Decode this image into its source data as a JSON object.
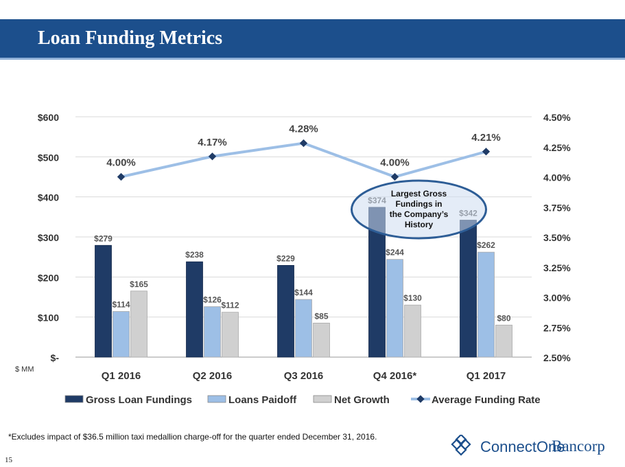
{
  "slide": {
    "title": "Loan Funding Metrics",
    "footnote": "*Excludes impact of $36.5 million taxi medallion charge-off for the quarter ended December 31, 2016.",
    "page_number": "15",
    "logo": {
      "name": "ConnectOne",
      "suffix": "Bancorp"
    }
  },
  "chart_data": {
    "type": "bar",
    "categories": [
      "Q1 2016",
      "Q2 2016",
      "Q3 2016",
      "Q4 2016*",
      "Q1 2017"
    ],
    "series": [
      {
        "name": "Gross Loan Fundings",
        "type": "bar",
        "axis": "left",
        "values": [
          279,
          238,
          229,
          374,
          342
        ],
        "labels": [
          "$279",
          "$238",
          "$229",
          "$374",
          "$342"
        ],
        "color": "#1f3b66"
      },
      {
        "name": "Loans Paidoff",
        "type": "bar",
        "axis": "left",
        "values": [
          114,
          126,
          144,
          244,
          262
        ],
        "labels": [
          "$114",
          "$126",
          "$144",
          "$244",
          "$262"
        ],
        "color": "#9dbfe6"
      },
      {
        "name": "Net Growth",
        "type": "bar",
        "axis": "left",
        "values": [
          165,
          112,
          85,
          130,
          80
        ],
        "labels": [
          "$165",
          "$112",
          "$85",
          "$130",
          "$80"
        ],
        "color": "#d0d0d0"
      },
      {
        "name": "Average Funding Rate",
        "type": "line",
        "axis": "right",
        "values": [
          4.0,
          4.17,
          4.28,
          4.0,
          4.21
        ],
        "labels": [
          "4.00%",
          "4.17%",
          "4.28%",
          "4.00%",
          "4.21%"
        ],
        "color": "#9dbfe6",
        "marker_color": "#1f3b66"
      }
    ],
    "y_left": {
      "ticks": [
        "$-",
        "$100",
        "$200",
        "$300",
        "$400",
        "$500",
        "$600"
      ],
      "range": [
        0,
        600
      ],
      "unit_label": "$ MM"
    },
    "y_right": {
      "ticks": [
        "2.50%",
        "2.75%",
        "3.00%",
        "3.25%",
        "3.50%",
        "3.75%",
        "4.00%",
        "4.25%",
        "4.50%"
      ],
      "range": [
        2.5,
        4.5
      ]
    },
    "grid": true,
    "legend_position": "bottom",
    "annotation": {
      "text": [
        "Largest Gross",
        "Fundings in",
        "the Company’s",
        "History"
      ],
      "category": "Q4 2016*"
    }
  }
}
